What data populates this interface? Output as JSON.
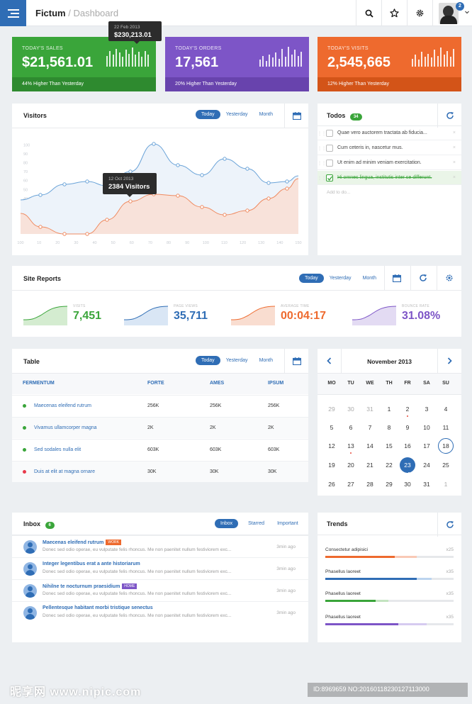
{
  "header": {
    "brand": "Fictum",
    "separator": " / ",
    "page": "Dashboard",
    "notifications": "2",
    "icons": {
      "menu": "hamburger-icon",
      "search": "search-icon",
      "star": "star-icon",
      "settings": "gear-icon",
      "caret": "chevron-down-icon"
    }
  },
  "stats": [
    {
      "label": "TODAY'S SALES",
      "value": "$21,561.01",
      "footer": "44% Higher Than Yesterday",
      "color": "#3aa53a",
      "footer_color": "#2e8a2f",
      "bars": [
        0.55,
        0.8,
        0.6,
        0.9,
        0.7,
        0.5,
        0.85,
        0.65,
        0.95,
        0.6,
        0.75,
        0.5,
        0.8,
        0.6
      ]
    },
    {
      "label": "TODAY'S ORDERS",
      "value": "17,561",
      "footer": "20% Higher Than Yesterday",
      "color": "#7d55c7",
      "footer_color": "#6843ad",
      "bars": [
        0.35,
        0.55,
        0.3,
        0.6,
        0.45,
        0.7,
        0.4,
        0.9,
        0.5,
        1.0,
        0.6,
        0.85,
        0.55,
        0.75
      ]
    },
    {
      "label": "TODAY'S VISITS",
      "value": "2,545,665",
      "footer": "12% Higher Than Yesterday",
      "color": "#ee6a2e",
      "footer_color": "#d35418",
      "bars": [
        0.4,
        0.6,
        0.35,
        0.75,
        0.5,
        0.65,
        0.45,
        0.85,
        0.55,
        0.95,
        0.6,
        0.8,
        0.5,
        0.9
      ]
    }
  ],
  "sales_tooltip": {
    "date": "22 Feb 2013",
    "value": "$230,213.01"
  },
  "visitors": {
    "title": "Visitors",
    "filters": [
      "Today",
      "Yesterday",
      "Month"
    ],
    "active_filter": "Today",
    "tooltip_date": "12 Oct 2013",
    "tooltip_value": "2384 Visitors",
    "calendar_icon": "calendar-icon"
  },
  "chart_data": {
    "type": "line",
    "title": "Visitors",
    "x": [
      100,
      10,
      20,
      30,
      40,
      50,
      60,
      70,
      80,
      90,
      100,
      110,
      120,
      130,
      140,
      150
    ],
    "x_tick_labels": [
      "100",
      "10",
      "20",
      "30",
      "40",
      "50",
      "60",
      "70",
      "80",
      "90",
      "100",
      "110",
      "120",
      "130",
      "140",
      "150"
    ],
    "y_tick_labels": [
      "10",
      "20",
      "30",
      "40",
      "50",
      "60",
      "70",
      "80",
      "90",
      "100"
    ],
    "series": [
      {
        "color": "#5b9bd5",
        "values": [
          null,
          null,
          null,
          55,
          55,
          51,
          60,
          72,
          68,
          85,
          96,
          84,
          72,
          70,
          77,
          72
        ]
      },
      {
        "color": "#ee7e52",
        "values": [
          null,
          null,
          null,
          30,
          28,
          23,
          25,
          33,
          42,
          48,
          50,
          42,
          38,
          34,
          32,
          38
        ]
      }
    ],
    "note": "series points plotted at data x positions; see script"
  },
  "todos": {
    "title": "Todos",
    "count": "34",
    "refresh_icon": "refresh-icon",
    "items": [
      {
        "text": "Quae vero auctorem tractata ab fiducia...",
        "done": false
      },
      {
        "text": "Cum ceteris in, nascetur mus.",
        "done": false
      },
      {
        "text": "Ut enim ad minim veniam exercitation.",
        "done": false
      },
      {
        "text": "Hi omnes lingua, institutis inter se differunt.",
        "done": true
      }
    ],
    "add_placeholder": "Add to do..."
  },
  "site_reports": {
    "title": "Site Reports",
    "filters": [
      "Today",
      "Yesterday",
      "Month"
    ],
    "active_filter": "Today",
    "items": [
      {
        "label": "VISITS",
        "value": "7,451",
        "color": "#3aa53a",
        "fill": "#d4ecd0"
      },
      {
        "label": "PAGE VIEWS",
        "value": "35,711",
        "color": "#2f6db5",
        "fill": "#d9e6f5"
      },
      {
        "label": "AVERAGE TIME",
        "value": "00:04:17",
        "color": "#ee6a2e",
        "fill": "#f9ddd0"
      },
      {
        "label": "BOUNCE RATE",
        "value": "31.08%",
        "color": "#7d55c7",
        "fill": "#e3dbf3"
      }
    ]
  },
  "table": {
    "title": "Table",
    "filters": [
      "Today",
      "Yesterday",
      "Month"
    ],
    "active_filter": "Today",
    "columns": [
      "FERMENTUM",
      "FORTE",
      "AMES",
      "IPSUM"
    ],
    "rows": [
      {
        "name": "Maecenas eleifend rutrum",
        "c2": "256K",
        "c3": "256K",
        "c4": "256K",
        "dot": "#3aa53a"
      },
      {
        "name": "Vivamus ullamcorper magna",
        "c2": "2K",
        "c3": "2K",
        "c4": "2K",
        "dot": "#3aa53a"
      },
      {
        "name": "Sed sodales nulla elit",
        "c2": "603K",
        "c3": "603K",
        "c4": "603K",
        "dot": "#3aa53a"
      },
      {
        "name": "Duis at elit at magna ornare",
        "c2": "30K",
        "c3": "30K",
        "c4": "30K",
        "dot": "#e8394b"
      }
    ]
  },
  "calendar": {
    "month": "November 2013",
    "weekdays": [
      "MO",
      "TU",
      "WE",
      "TH",
      "FR",
      "SA",
      "SU"
    ],
    "weeks": [
      [
        "29",
        "30",
        "31",
        "1",
        "2",
        "3",
        "4"
      ],
      [
        "5",
        "6",
        "7",
        "8",
        "9",
        "10",
        "11"
      ],
      [
        "12",
        "13",
        "14",
        "15",
        "16",
        "17",
        "18"
      ],
      [
        "19",
        "20",
        "21",
        "22",
        "23",
        "24",
        "25"
      ],
      [
        "26",
        "27",
        "28",
        "29",
        "30",
        "31",
        "1"
      ]
    ],
    "selected": "23",
    "today": "18"
  },
  "inbox": {
    "title": "Inbox",
    "count": "6",
    "filters": [
      "Inbox",
      "Starred",
      "Important"
    ],
    "active_filter": "Inbox",
    "messages": [
      {
        "subject": "Maecenas eleifend rutrum",
        "tag": "WORK",
        "tag_color": "#ee6a2e",
        "preview": "Donec sed odio operae, eu vulputate felis rhoncus. Me non paenitet nullum festiviorem exc...",
        "time": "3min ago"
      },
      {
        "subject": "Integer legentibus erat a ante historiarum",
        "tag": "",
        "tag_color": "",
        "preview": "Donec sed odio operae, eu vulputate felis rhoncus. Me non paenitet nullum festiviorem exc...",
        "time": "3min ago"
      },
      {
        "subject": "Nihilne te nocturnum praesidium",
        "tag": "HOME",
        "tag_color": "#7d55c7",
        "preview": "Donec sed odio operae, eu vulputate felis rhoncus. Me non paenitet nullum festiviorem exc...",
        "time": "3min ago"
      },
      {
        "subject": "Pellentesque habitant morbi tristique senectus",
        "tag": "",
        "tag_color": "",
        "preview": "Donec sed odio operae, eu vulputate felis rhoncus. Me non paenitet nullum festiviorem exc...",
        "time": "3min ago"
      }
    ]
  },
  "trends": {
    "title": "Trends",
    "items": [
      {
        "name": "Consectetur adipisici",
        "value": "x25",
        "primary": 0.54,
        "secondary": 0.71,
        "color": "#ee6a2e",
        "light": "#f9c9b6"
      },
      {
        "name": "Phasellus laoreet",
        "value": "x35",
        "primary": 0.71,
        "secondary": 0.83,
        "color": "#2f6db5",
        "light": "#bcd4ef"
      },
      {
        "name": "Phasellus laoreet",
        "value": "x35",
        "primary": 0.39,
        "secondary": 0.49,
        "color": "#3aa53a",
        "light": "#c3e3c0"
      },
      {
        "name": "Phasellus laoreet",
        "value": "x35",
        "primary": 0.57,
        "secondary": 0.79,
        "color": "#7d55c7",
        "light": "#d6cbf0"
      }
    ]
  },
  "watermark": {
    "left": "昵享网 www.nipic.com",
    "right": "ID:8969659 NO:20160118230127113000"
  }
}
